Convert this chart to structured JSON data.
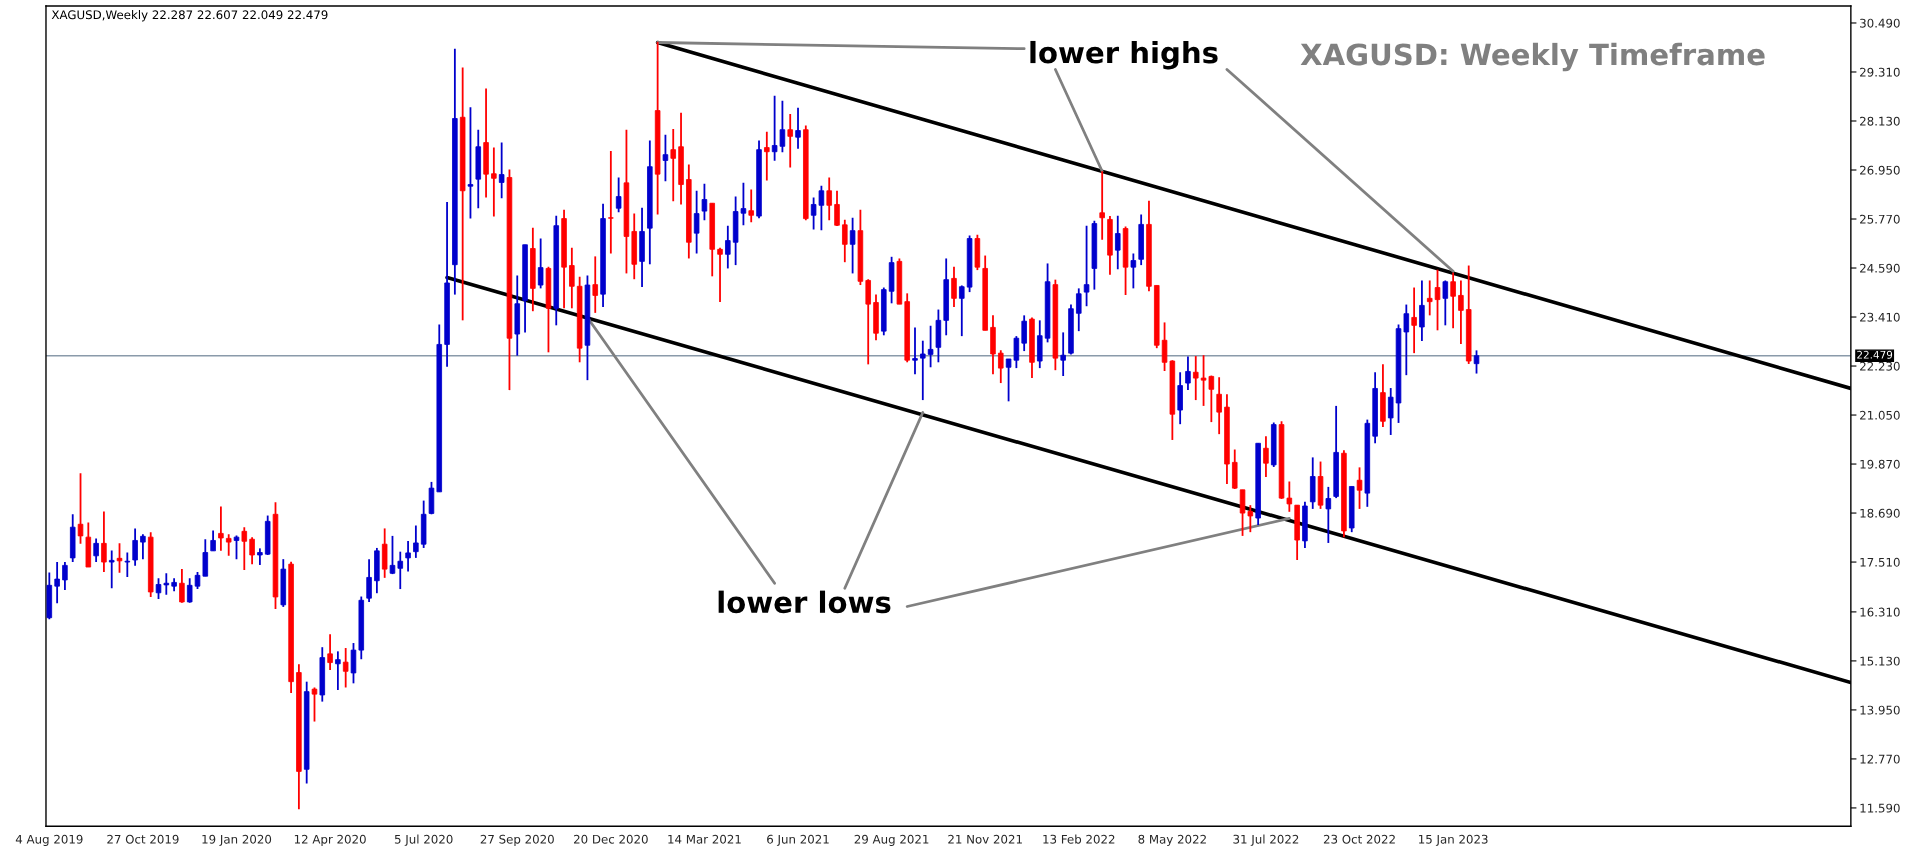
{
  "chart_data": {
    "type": "candlestick",
    "title": "XAGUSD,Weekly 22.287 22.607 22.049 22.479",
    "annotations": [
      "XAGUSD: Weekly Timeframe",
      "lower highs",
      "lower lows"
    ],
    "x": [
      "2019-08-04",
      "2019-08-11",
      "2019-08-18",
      "2019-08-25",
      "2019-09-01",
      "2019-09-08",
      "2019-09-15",
      "2019-09-22",
      "2019-09-29",
      "2019-10-06",
      "2019-10-13",
      "2019-10-20",
      "2019-10-27",
      "2019-11-03",
      "2019-11-10",
      "2019-11-17",
      "2019-11-24",
      "2019-12-01",
      "2019-12-08",
      "2019-12-15",
      "2019-12-22",
      "2019-12-29",
      "2020-01-05",
      "2020-01-12",
      "2020-01-19",
      "2020-01-26",
      "2020-02-02",
      "2020-02-09",
      "2020-02-16",
      "2020-02-23",
      "2020-03-01",
      "2020-03-08",
      "2020-03-15",
      "2020-03-22",
      "2020-03-29",
      "2020-04-05",
      "2020-04-12",
      "2020-04-19",
      "2020-04-26",
      "2020-05-03",
      "2020-05-10",
      "2020-05-17",
      "2020-05-24",
      "2020-05-31",
      "2020-06-07",
      "2020-06-14",
      "2020-06-21",
      "2020-06-28",
      "2020-07-05",
      "2020-07-12",
      "2020-07-19",
      "2020-07-26",
      "2020-08-02",
      "2020-08-09",
      "2020-08-16",
      "2020-08-23",
      "2020-08-30",
      "2020-09-06",
      "2020-09-13",
      "2020-09-20",
      "2020-09-27",
      "2020-10-04",
      "2020-10-11",
      "2020-10-18",
      "2020-10-25",
      "2020-11-01",
      "2020-11-08",
      "2020-11-15",
      "2020-11-22",
      "2020-11-29",
      "2020-12-06",
      "2020-12-13",
      "2020-12-20",
      "2020-12-27",
      "2021-01-03",
      "2021-01-10",
      "2021-01-17",
      "2021-01-24",
      "2021-01-31",
      "2021-02-07",
      "2021-02-14",
      "2021-02-21",
      "2021-02-28",
      "2021-03-07",
      "2021-03-14",
      "2021-03-21",
      "2021-03-28",
      "2021-04-04",
      "2021-04-11",
      "2021-04-18",
      "2021-04-25",
      "2021-05-02",
      "2021-05-09",
      "2021-05-16",
      "2021-05-23",
      "2021-05-30",
      "2021-06-06",
      "2021-06-13",
      "2021-06-20",
      "2021-06-27",
      "2021-07-04",
      "2021-07-11",
      "2021-07-18",
      "2021-07-25",
      "2021-08-01",
      "2021-08-08",
      "2021-08-15",
      "2021-08-22",
      "2021-08-29",
      "2021-09-05",
      "2021-09-12",
      "2021-09-19",
      "2021-09-26",
      "2021-10-03",
      "2021-10-10",
      "2021-10-17",
      "2021-10-24",
      "2021-10-31",
      "2021-11-07",
      "2021-11-14",
      "2021-11-21",
      "2021-11-28",
      "2021-12-05",
      "2021-12-12",
      "2021-12-19",
      "2021-12-26",
      "2022-01-02",
      "2022-01-09",
      "2022-01-16",
      "2022-01-23",
      "2022-01-30",
      "2022-02-06",
      "2022-02-13",
      "2022-02-20",
      "2022-02-27",
      "2022-03-06",
      "2022-03-13",
      "2022-03-20",
      "2022-03-27",
      "2022-04-03",
      "2022-04-10",
      "2022-04-17",
      "2022-04-24",
      "2022-05-01",
      "2022-05-08",
      "2022-05-15",
      "2022-05-22",
      "2022-05-29",
      "2022-06-05",
      "2022-06-12",
      "2022-06-19",
      "2022-06-26",
      "2022-07-03",
      "2022-07-10",
      "2022-07-17",
      "2022-07-24",
      "2022-07-31",
      "2022-08-07",
      "2022-08-14",
      "2022-08-21",
      "2022-08-28",
      "2022-09-04",
      "2022-09-11",
      "2022-09-18",
      "2022-09-25",
      "2022-10-02",
      "2022-10-09",
      "2022-10-16",
      "2022-10-23",
      "2022-10-30",
      "2022-11-06",
      "2022-11-13",
      "2022-11-20",
      "2022-11-27",
      "2022-12-04",
      "2022-12-11",
      "2022-12-18",
      "2022-12-25",
      "2023-01-01",
      "2023-01-08",
      "2023-01-15",
      "2023-01-22",
      "2023-01-29",
      "2023-02-05"
    ],
    "ohlc": [
      [
        16.17,
        17.26,
        16.13,
        16.95
      ],
      [
        16.93,
        17.51,
        16.52,
        17.1
      ],
      [
        17.08,
        17.51,
        16.84,
        17.43
      ],
      [
        17.61,
        18.66,
        17.51,
        18.35
      ],
      [
        18.42,
        19.65,
        17.95,
        18.14
      ],
      [
        18.11,
        18.46,
        17.39,
        17.39
      ],
      [
        17.66,
        18.08,
        17.51,
        17.96
      ],
      [
        17.96,
        18.73,
        17.27,
        17.51
      ],
      [
        17.51,
        17.79,
        16.88,
        17.55
      ],
      [
        17.6,
        17.96,
        17.25,
        17.54
      ],
      [
        17.51,
        17.74,
        17.15,
        17.53
      ],
      [
        17.56,
        18.32,
        17.42,
        18.03
      ],
      [
        17.99,
        18.18,
        17.58,
        18.13
      ],
      [
        18.11,
        18.23,
        16.67,
        16.79
      ],
      [
        16.77,
        17.12,
        16.62,
        16.97
      ],
      [
        16.96,
        17.24,
        16.72,
        17.0
      ],
      [
        16.93,
        17.12,
        16.81,
        17.02
      ],
      [
        17.0,
        17.34,
        16.53,
        16.55
      ],
      [
        16.55,
        17.12,
        16.53,
        16.95
      ],
      [
        16.93,
        17.27,
        16.86,
        17.19
      ],
      [
        17.17,
        18.06,
        17.17,
        17.74
      ],
      [
        17.78,
        18.27,
        17.78,
        18.03
      ],
      [
        18.2,
        18.85,
        17.78,
        18.09
      ],
      [
        18.08,
        18.18,
        17.66,
        17.99
      ],
      [
        18.03,
        18.15,
        17.58,
        18.11
      ],
      [
        18.25,
        18.35,
        17.32,
        18.01
      ],
      [
        18.06,
        18.11,
        17.46,
        17.68
      ],
      [
        17.68,
        17.84,
        17.44,
        17.74
      ],
      [
        17.7,
        18.63,
        17.68,
        18.49
      ],
      [
        18.66,
        18.95,
        16.38,
        16.67
      ],
      [
        16.48,
        17.58,
        16.43,
        17.34
      ],
      [
        17.46,
        17.52,
        14.36,
        14.63
      ],
      [
        14.85,
        15.05,
        11.56,
        12.47
      ],
      [
        12.52,
        14.63,
        12.18,
        14.39
      ],
      [
        14.45,
        14.49,
        13.67,
        14.33
      ],
      [
        14.31,
        15.46,
        14.15,
        15.21
      ],
      [
        15.3,
        15.77,
        14.91,
        15.09
      ],
      [
        15.06,
        15.36,
        14.43,
        15.16
      ],
      [
        15.1,
        15.44,
        14.49,
        14.88
      ],
      [
        14.84,
        15.56,
        14.59,
        15.39
      ],
      [
        15.39,
        16.68,
        15.17,
        16.59
      ],
      [
        16.64,
        17.58,
        16.55,
        17.14
      ],
      [
        17.06,
        17.85,
        16.76,
        17.78
      ],
      [
        17.94,
        18.32,
        17.13,
        17.34
      ],
      [
        17.24,
        18.14,
        17.22,
        17.43
      ],
      [
        17.36,
        17.76,
        16.86,
        17.53
      ],
      [
        17.61,
        18.02,
        17.28,
        17.73
      ],
      [
        17.76,
        18.39,
        17.61,
        17.97
      ],
      [
        17.94,
        18.99,
        17.85,
        18.66
      ],
      [
        18.68,
        19.44,
        18.66,
        19.29
      ],
      [
        19.2,
        23.23,
        19.2,
        22.75
      ],
      [
        22.75,
        26.18,
        22.21,
        24.23
      ],
      [
        24.67,
        29.87,
        23.95,
        28.19
      ],
      [
        28.22,
        29.42,
        23.33,
        26.45
      ],
      [
        26.56,
        28.46,
        25.78,
        26.6
      ],
      [
        26.73,
        27.92,
        26.03,
        27.51
      ],
      [
        27.61,
        28.91,
        26.29,
        26.85
      ],
      [
        26.86,
        27.49,
        25.83,
        26.75
      ],
      [
        26.65,
        27.61,
        26.27,
        26.84
      ],
      [
        26.77,
        26.96,
        21.65,
        22.9
      ],
      [
        23.0,
        24.41,
        22.48,
        23.73
      ],
      [
        23.81,
        25.15,
        23.04,
        25.15
      ],
      [
        25.06,
        25.56,
        23.55,
        24.1
      ],
      [
        24.18,
        25.3,
        24.1,
        24.6
      ],
      [
        24.58,
        24.62,
        22.56,
        23.62
      ],
      [
        23.62,
        25.85,
        23.21,
        25.61
      ],
      [
        25.78,
        25.99,
        23.62,
        24.61
      ],
      [
        24.65,
        25.08,
        23.62,
        24.15
      ],
      [
        24.15,
        24.38,
        22.32,
        22.66
      ],
      [
        22.73,
        24.41,
        21.89,
        24.18
      ],
      [
        24.19,
        24.87,
        23.51,
        23.93
      ],
      [
        23.96,
        26.14,
        23.65,
        25.78
      ],
      [
        25.8,
        27.41,
        24.94,
        25.79
      ],
      [
        26.03,
        26.77,
        25.93,
        26.31
      ],
      [
        26.64,
        27.92,
        24.46,
        25.35
      ],
      [
        25.47,
        25.9,
        24.32,
        24.68
      ],
      [
        24.75,
        26.04,
        24.13,
        25.47
      ],
      [
        25.55,
        27.66,
        24.68,
        27.03
      ],
      [
        28.38,
        30.04,
        25.88,
        26.85
      ],
      [
        27.18,
        27.8,
        26.68,
        27.32
      ],
      [
        27.44,
        27.94,
        26.2,
        27.23
      ],
      [
        27.51,
        28.33,
        26.12,
        26.6
      ],
      [
        26.72,
        27.08,
        24.82,
        25.21
      ],
      [
        25.43,
        26.45,
        24.94,
        25.9
      ],
      [
        25.96,
        26.62,
        25.74,
        26.24
      ],
      [
        26.15,
        26.15,
        24.39,
        25.04
      ],
      [
        25.04,
        25.08,
        23.77,
        24.92
      ],
      [
        24.92,
        25.61,
        24.58,
        25.25
      ],
      [
        25.21,
        26.31,
        24.66,
        25.95
      ],
      [
        25.91,
        26.64,
        25.62,
        26.02
      ],
      [
        25.97,
        26.48,
        25.69,
        25.86
      ],
      [
        25.84,
        27.66,
        25.79,
        27.44
      ],
      [
        27.49,
        27.87,
        26.7,
        27.39
      ],
      [
        27.39,
        28.74,
        27.17,
        27.54
      ],
      [
        27.52,
        28.62,
        27.38,
        27.92
      ],
      [
        27.92,
        28.3,
        27.01,
        27.76
      ],
      [
        27.74,
        28.45,
        27.46,
        27.9
      ],
      [
        27.92,
        28.02,
        25.74,
        25.78
      ],
      [
        25.86,
        26.29,
        25.52,
        26.12
      ],
      [
        26.1,
        26.57,
        25.5,
        26.45
      ],
      [
        26.45,
        26.77,
        25.74,
        26.1
      ],
      [
        26.12,
        26.45,
        25.6,
        25.62
      ],
      [
        25.63,
        25.75,
        24.73,
        25.16
      ],
      [
        25.16,
        25.8,
        24.46,
        25.49
      ],
      [
        25.49,
        25.99,
        24.18,
        24.27
      ],
      [
        24.29,
        24.32,
        22.27,
        23.72
      ],
      [
        23.76,
        23.95,
        22.85,
        23.02
      ],
      [
        23.07,
        24.12,
        22.97,
        24.07
      ],
      [
        24.03,
        24.86,
        23.74,
        24.72
      ],
      [
        24.75,
        24.82,
        23.72,
        23.72
      ],
      [
        23.78,
        23.98,
        22.32,
        22.37
      ],
      [
        22.37,
        23.16,
        22.03,
        22.41
      ],
      [
        22.42,
        22.84,
        21.41,
        22.52
      ],
      [
        22.51,
        23.2,
        22.2,
        22.63
      ],
      [
        22.68,
        23.59,
        22.32,
        23.33
      ],
      [
        23.33,
        24.82,
        22.97,
        24.31
      ],
      [
        24.34,
        24.62,
        23.65,
        23.86
      ],
      [
        23.86,
        24.17,
        22.95,
        24.14
      ],
      [
        24.13,
        25.37,
        24.01,
        25.3
      ],
      [
        25.3,
        25.39,
        24.54,
        24.61
      ],
      [
        24.58,
        24.89,
        23.09,
        23.09
      ],
      [
        23.16,
        23.45,
        22.03,
        22.52
      ],
      [
        22.54,
        22.61,
        21.82,
        22.18
      ],
      [
        22.2,
        22.4,
        21.38,
        22.4
      ],
      [
        22.37,
        22.95,
        22.18,
        22.9
      ],
      [
        22.78,
        23.45,
        22.59,
        23.31
      ],
      [
        23.36,
        23.4,
        21.94,
        22.32
      ],
      [
        22.35,
        23.33,
        22.18,
        22.96
      ],
      [
        22.9,
        24.7,
        22.8,
        24.26
      ],
      [
        24.19,
        24.31,
        22.13,
        22.42
      ],
      [
        22.37,
        23.04,
        21.99,
        22.49
      ],
      [
        22.54,
        23.71,
        22.51,
        23.61
      ],
      [
        23.5,
        24.1,
        23.07,
        23.97
      ],
      [
        24.01,
        25.61,
        23.67,
        24.19
      ],
      [
        24.58,
        25.73,
        24.07,
        25.66
      ],
      [
        25.92,
        26.92,
        25.27,
        25.8
      ],
      [
        25.76,
        25.84,
        24.43,
        24.9
      ],
      [
        25.02,
        25.85,
        24.56,
        25.42
      ],
      [
        25.54,
        25.59,
        23.94,
        24.61
      ],
      [
        24.61,
        24.94,
        24.1,
        24.77
      ],
      [
        24.8,
        25.88,
        24.66,
        25.64
      ],
      [
        25.64,
        26.21,
        24.03,
        24.15
      ],
      [
        24.17,
        24.17,
        22.66,
        22.73
      ],
      [
        22.85,
        23.28,
        22.11,
        22.32
      ],
      [
        22.35,
        22.37,
        20.45,
        21.07
      ],
      [
        21.17,
        22.08,
        20.83,
        21.76
      ],
      [
        21.82,
        22.46,
        21.65,
        22.1
      ],
      [
        22.08,
        22.47,
        21.41,
        21.94
      ],
      [
        21.94,
        22.49,
        21.27,
        21.89
      ],
      [
        21.98,
        22.0,
        20.88,
        21.67
      ],
      [
        21.55,
        21.96,
        20.59,
        21.12
      ],
      [
        21.24,
        21.55,
        19.39,
        19.87
      ],
      [
        19.91,
        20.22,
        19.27,
        19.29
      ],
      [
        19.25,
        19.25,
        18.14,
        18.69
      ],
      [
        18.73,
        18.88,
        18.23,
        18.62
      ],
      [
        18.57,
        20.37,
        18.4,
        20.37
      ],
      [
        20.25,
        20.54,
        19.56,
        19.89
      ],
      [
        19.85,
        20.87,
        19.8,
        20.82
      ],
      [
        20.82,
        20.9,
        19.03,
        19.05
      ],
      [
        19.05,
        19.45,
        18.72,
        18.91
      ],
      [
        18.88,
        18.88,
        17.56,
        18.04
      ],
      [
        18.02,
        18.96,
        17.85,
        18.86
      ],
      [
        18.96,
        20.03,
        18.79,
        19.57
      ],
      [
        19.57,
        19.93,
        18.79,
        18.88
      ],
      [
        18.79,
        19.32,
        17.97,
        19.04
      ],
      [
        19.09,
        21.27,
        19.05,
        20.15
      ],
      [
        20.13,
        20.2,
        18.11,
        18.26
      ],
      [
        18.33,
        19.33,
        18.23,
        19.33
      ],
      [
        19.48,
        19.79,
        18.79,
        19.24
      ],
      [
        19.17,
        20.94,
        18.84,
        20.85
      ],
      [
        20.54,
        22.08,
        20.37,
        21.69
      ],
      [
        21.59,
        22.27,
        20.76,
        20.9
      ],
      [
        20.98,
        21.7,
        20.57,
        21.48
      ],
      [
        21.34,
        23.23,
        20.86,
        23.13
      ],
      [
        23.05,
        23.71,
        22.01,
        23.49
      ],
      [
        23.4,
        24.12,
        22.54,
        23.21
      ],
      [
        23.17,
        24.29,
        22.83,
        23.69
      ],
      [
        23.86,
        24.29,
        23.45,
        23.78
      ],
      [
        24.12,
        24.55,
        23.09,
        23.83
      ],
      [
        23.86,
        24.29,
        23.21,
        24.26
      ],
      [
        24.26,
        24.48,
        23.14,
        23.91
      ],
      [
        23.93,
        24.29,
        22.76,
        23.57
      ],
      [
        23.59,
        24.65,
        22.28,
        22.35
      ],
      [
        22.287,
        22.607,
        22.049,
        22.479
      ]
    ],
    "colors": [
      "#0000cc",
      "#0000cc",
      "#0000cc",
      "#0000cc",
      "#ff0000",
      "#ff0000",
      "#0000cc",
      "#ff0000",
      "#0000cc",
      "#ff0000",
      "#0000cc",
      "#0000cc",
      "#0000cc",
      "#ff0000",
      "#0000cc",
      "#0000cc",
      "#0000cc",
      "#ff0000",
      "#0000cc",
      "#0000cc",
      "#0000cc",
      "#0000cc",
      "#ff0000",
      "#ff0000",
      "#0000cc",
      "#ff0000",
      "#ff0000",
      "#0000cc",
      "#0000cc",
      "#ff0000",
      "#0000cc",
      "#ff0000",
      "#ff0000",
      "#0000cc",
      "#ff0000",
      "#0000cc",
      "#ff0000",
      "#0000cc",
      "#ff0000",
      "#0000cc",
      "#0000cc",
      "#0000cc",
      "#0000cc",
      "#ff0000",
      "#0000cc",
      "#0000cc",
      "#0000cc",
      "#0000cc",
      "#0000cc",
      "#0000cc",
      "#0000cc",
      "#0000cc",
      "#0000cc",
      "#ff0000",
      "#0000cc",
      "#0000cc",
      "#ff0000",
      "#ff0000",
      "#0000cc",
      "#ff0000",
      "#0000cc",
      "#0000cc",
      "#ff0000",
      "#0000cc",
      "#ff0000",
      "#0000cc",
      "#ff0000",
      "#ff0000",
      "#ff0000",
      "#0000cc",
      "#ff0000",
      "#0000cc",
      "#ff0000",
      "#0000cc",
      "#ff0000",
      "#ff0000",
      "#0000cc",
      "#0000cc",
      "#ff0000",
      "#0000cc",
      "#ff0000",
      "#ff0000",
      "#ff0000",
      "#0000cc",
      "#0000cc",
      "#ff0000",
      "#ff0000",
      "#0000cc",
      "#0000cc",
      "#0000cc",
      "#ff0000",
      "#0000cc",
      "#ff0000",
      "#0000cc",
      "#0000cc",
      "#ff0000",
      "#0000cc",
      "#ff0000",
      "#0000cc",
      "#0000cc",
      "#ff0000",
      "#ff0000",
      "#ff0000",
      "#0000cc",
      "#ff0000",
      "#ff0000",
      "#ff0000",
      "#0000cc",
      "#0000cc",
      "#ff0000",
      "#ff0000",
      "#0000cc",
      "#0000cc",
      "#0000cc",
      "#0000cc",
      "#0000cc",
      "#ff0000",
      "#0000cc",
      "#0000cc",
      "#ff0000",
      "#ff0000",
      "#ff0000",
      "#ff0000",
      "#0000cc",
      "#0000cc",
      "#0000cc",
      "#ff0000",
      "#0000cc",
      "#0000cc",
      "#ff0000",
      "#0000cc",
      "#0000cc",
      "#0000cc",
      "#0000cc",
      "#0000cc",
      "#ff0000",
      "#ff0000",
      "#0000cc",
      "#ff0000",
      "#0000cc",
      "#0000cc",
      "#ff0000",
      "#ff0000",
      "#ff0000",
      "#ff0000",
      "#0000cc",
      "#0000cc",
      "#ff0000",
      "#ff0000",
      "#ff0000",
      "#ff0000",
      "#ff0000",
      "#ff0000",
      "#ff0000",
      "#ff0000",
      "#0000cc",
      "#ff0000",
      "#0000cc",
      "#ff0000",
      "#ff0000",
      "#ff0000",
      "#0000cc",
      "#0000cc",
      "#ff0000",
      "#0000cc",
      "#0000cc",
      "#ff0000",
      "#0000cc",
      "#ff0000",
      "#0000cc",
      "#0000cc",
      "#ff0000",
      "#0000cc",
      "#0000cc",
      "#0000cc",
      "#ff0000",
      "#0000cc",
      "#ff0000",
      "#ff0000",
      "#0000cc",
      "#ff0000",
      "#ff0000",
      "#ff0000",
      "#0000cc"
    ],
    "series": [
      {
        "type": "line",
        "color": "#000000",
        "x": [
          "2021-01-31",
          "2024-01-07"
        ],
        "values": [
          30.02,
          21.69
        ]
      },
      {
        "type": "line",
        "color": "#000000",
        "x": [
          "2020-07-26",
          "2024-01-07"
        ],
        "values": [
          24.36,
          14.61
        ]
      },
      {
        "type": "line",
        "color": "#808080",
        "x": [
          "2021-01-31",
          "2021-12-26"
        ],
        "values": [
          30.02,
          29.87
        ]
      },
      {
        "type": "line",
        "color": "#808080",
        "x": [
          "2022-01-23",
          "2022-03-06"
        ],
        "values": [
          29.37,
          26.92
        ]
      },
      {
        "type": "line",
        "color": "#808080",
        "x": [
          "2022-06-26",
          "2023-01-15"
        ],
        "values": [
          29.37,
          24.51
        ]
      },
      {
        "type": "line",
        "color": "#808080",
        "x": [
          "2021-05-16",
          "2020-11-29"
        ],
        "values": [
          17.0,
          23.4
        ]
      },
      {
        "type": "line",
        "color": "#808080",
        "x": [
          "2021-07-18",
          "2021-09-26"
        ],
        "values": [
          16.88,
          21.11
        ]
      },
      {
        "type": "line",
        "color": "#808080",
        "x": [
          "2021-09-12",
          "2022-08-21"
        ],
        "values": [
          16.44,
          18.56
        ]
      }
    ],
    "ref_lines": [
      {
        "axis": "y",
        "value": 22.479,
        "label": "22.479",
        "color": "#8a9aaa"
      }
    ],
    "xlim": [
      "2019-08-01",
      "2024-01-07"
    ],
    "xticks": [
      {
        "value": "2019-08-04",
        "label": "4 Aug 2019"
      },
      {
        "value": "2019-10-27",
        "label": "27 Oct 2019"
      },
      {
        "value": "2020-01-19",
        "label": "19 Jan 2020"
      },
      {
        "value": "2020-04-12",
        "label": "12 Apr 2020"
      },
      {
        "value": "2020-07-05",
        "label": "5 Jul 2020"
      },
      {
        "value": "2020-09-27",
        "label": "27 Sep 2020"
      },
      {
        "value": "2020-12-20",
        "label": "20 Dec 2020"
      },
      {
        "value": "2021-03-14",
        "label": "14 Mar 2021"
      },
      {
        "value": "2021-06-06",
        "label": "6 Jun 2021"
      },
      {
        "value": "2021-08-29",
        "label": "29 Aug 2021"
      },
      {
        "value": "2021-11-21",
        "label": "21 Nov 2021"
      },
      {
        "value": "2022-02-13",
        "label": "13 Feb 2022"
      },
      {
        "value": "2022-05-08",
        "label": "8 May 2022"
      },
      {
        "value": "2022-07-31",
        "label": "31 Jul 2022"
      },
      {
        "value": "2022-10-23",
        "label": "23 Oct 2022"
      },
      {
        "value": "2023-01-15",
        "label": "15 Jan 2023"
      }
    ],
    "ylim": [
      11.15,
      30.9
    ],
    "yticks": [
      {
        "value": 30.49,
        "label": "30.490"
      },
      {
        "value": 29.31,
        "label": "29.310"
      },
      {
        "value": 28.13,
        "label": "28.130"
      },
      {
        "value": 26.95,
        "label": "26.950"
      },
      {
        "value": 25.77,
        "label": "25.770"
      },
      {
        "value": 24.59,
        "label": "24.590"
      },
      {
        "value": 23.41,
        "label": "23.410"
      },
      {
        "value": 22.23,
        "label": "22.230"
      },
      {
        "value": 21.05,
        "label": "21.050"
      },
      {
        "value": 19.87,
        "label": "19.870"
      },
      {
        "value": 18.69,
        "label": "18.690"
      },
      {
        "value": 17.51,
        "label": "17.510"
      },
      {
        "value": 16.31,
        "label": "16.310"
      },
      {
        "value": 15.13,
        "label": "15.130"
      },
      {
        "value": 13.95,
        "label": "13.950"
      },
      {
        "value": 12.77,
        "label": "12.770"
      },
      {
        "value": 11.59,
        "label": "11.590"
      }
    ]
  }
}
